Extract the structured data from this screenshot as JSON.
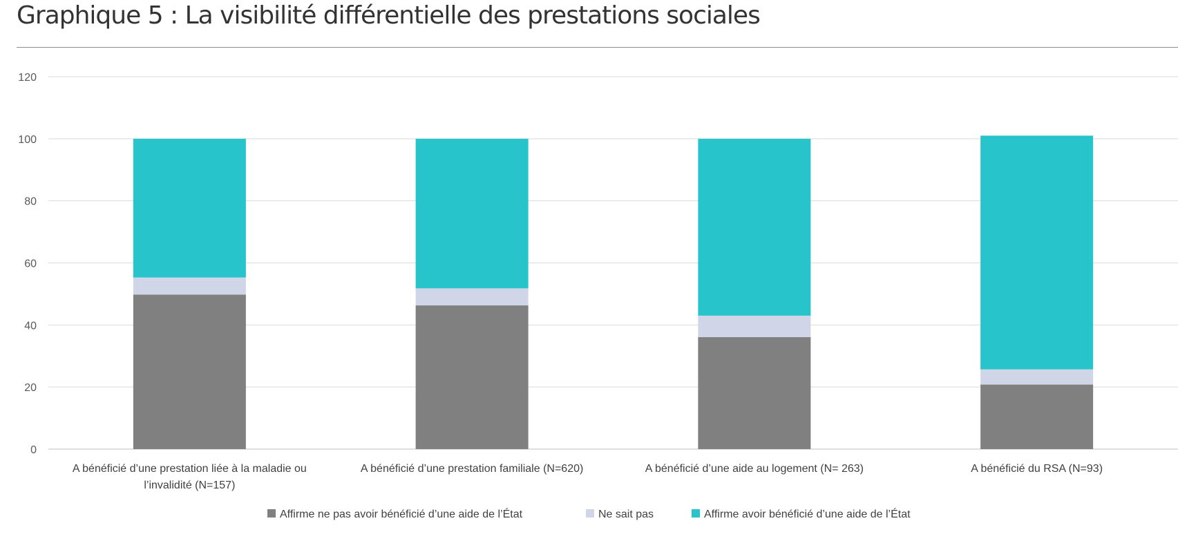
{
  "page_title": "Graphique 5 : La visibilité différentielle des prestations sociales",
  "chart_data": {
    "type": "bar",
    "stacked": true,
    "title": "Graphique 5 : La visibilité différentielle des prestations sociales",
    "xlabel": "",
    "ylabel": "",
    "ylim": [
      0,
      120
    ],
    "yticks": [
      0,
      20,
      40,
      60,
      80,
      100,
      120
    ],
    "grid": true,
    "legend_position": "bottom",
    "categories": [
      "A bénéficié d’une prestation liée à la maladie ou l’invalidité (N=157)",
      "A bénéficié d’une prestation familiale (N=620)",
      "A bénéficié d’une aide au logement (N= 263)",
      "A bénéficié du RSA (N=93)"
    ],
    "category_label_lines": [
      [
        "A bénéficié d’une prestation liée à la maladie ou",
        "l’invalidité (N=157)"
      ],
      [
        "A bénéficié d’une prestation familiale (N=620)"
      ],
      [
        "A bénéficié d’une aide au logement (N= 263)"
      ],
      [
        "A bénéficié du RSA (N=93)"
      ]
    ],
    "series": [
      {
        "name": "Affirme ne pas avoir bénéficié d’une aide de l’État",
        "color": "#808080",
        "values": [
          49.8,
          46.3,
          36.1,
          20.8
        ]
      },
      {
        "name": "Ne sait pas",
        "color": "#d0d5e8",
        "values": [
          5.5,
          5.5,
          6.9,
          4.9
        ]
      },
      {
        "name": "Affirme avoir bénéficié d’une aide de l’État",
        "color": "#27c4cc",
        "values": [
          44.7,
          48.2,
          57.0,
          75.3
        ]
      }
    ]
  }
}
